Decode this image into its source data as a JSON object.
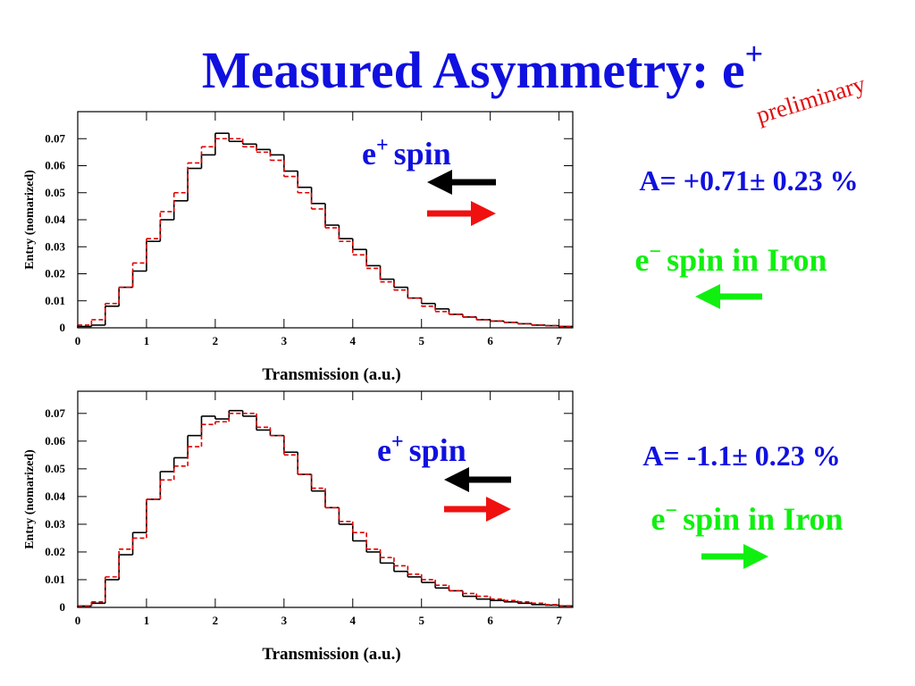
{
  "header": {
    "title": "Measured Asymmetry: e",
    "title_sup": "+",
    "stamp": "preliminary"
  },
  "chart_data": [
    {
      "type": "histogram",
      "bins": [
        0,
        0.2,
        0.4,
        0.6,
        0.8,
        1.0,
        1.2,
        1.4,
        1.6,
        1.8,
        2.0,
        2.2,
        2.4,
        2.6,
        2.8,
        3.0,
        3.2,
        3.4,
        3.6,
        3.8,
        4.0,
        4.2,
        4.4,
        4.6,
        4.8,
        5.0,
        5.2,
        5.4,
        5.6,
        5.8,
        6.0,
        6.2,
        6.4,
        6.6,
        6.8,
        7.0,
        7.2
      ],
      "series": [
        {
          "color": "#000000",
          "values": [
            0.0005,
            0.001,
            0.008,
            0.015,
            0.021,
            0.032,
            0.04,
            0.047,
            0.059,
            0.064,
            0.072,
            0.069,
            0.068,
            0.066,
            0.064,
            0.058,
            0.052,
            0.046,
            0.038,
            0.033,
            0.029,
            0.023,
            0.018,
            0.015,
            0.011,
            0.009,
            0.007,
            0.005,
            0.004,
            0.003,
            0.0025,
            0.002,
            0.0015,
            0.001,
            0.0008,
            0.0005
          ]
        },
        {
          "color": "#e00000",
          "dashed": true,
          "values": [
            0.001,
            0.003,
            0.009,
            0.015,
            0.024,
            0.033,
            0.043,
            0.05,
            0.061,
            0.067,
            0.07,
            0.07,
            0.067,
            0.065,
            0.062,
            0.056,
            0.05,
            0.044,
            0.037,
            0.032,
            0.027,
            0.022,
            0.017,
            0.014,
            0.011,
            0.008,
            0.006,
            0.005,
            0.004,
            0.003,
            0.0025,
            0.002,
            0.0015,
            0.001,
            0.0008,
            0.0005
          ]
        }
      ],
      "xlim": [
        0,
        7.2
      ],
      "ylim": [
        0,
        0.08
      ],
      "xticks": [
        0,
        1,
        2,
        3,
        4,
        5,
        6,
        7
      ],
      "yticks": [
        0,
        0.01,
        0.02,
        0.03,
        0.04,
        0.05,
        0.06,
        0.07
      ],
      "x_label": "Transmission (a.u.)",
      "y_label": "Entry (nomarized)",
      "annotations": {
        "spin_base": "e",
        "spin_sup": "+",
        "spin_word": "spin",
        "asymmetry": "A= +0.71± 0.23 %",
        "iron_base": "e",
        "iron_sup": "−",
        "iron_word": "spin in Iron"
      }
    },
    {
      "type": "histogram",
      "bins": [
        0,
        0.2,
        0.4,
        0.6,
        0.8,
        1.0,
        1.2,
        1.4,
        1.6,
        1.8,
        2.0,
        2.2,
        2.4,
        2.6,
        2.8,
        3.0,
        3.2,
        3.4,
        3.6,
        3.8,
        4.0,
        4.2,
        4.4,
        4.6,
        4.8,
        5.0,
        5.2,
        5.4,
        5.6,
        5.8,
        6.0,
        6.2,
        6.4,
        6.6,
        6.8,
        7.0,
        7.2
      ],
      "series": [
        {
          "color": "#000000",
          "values": [
            0.0005,
            0.0015,
            0.01,
            0.019,
            0.027,
            0.039,
            0.049,
            0.054,
            0.062,
            0.069,
            0.068,
            0.071,
            0.069,
            0.064,
            0.062,
            0.056,
            0.048,
            0.042,
            0.036,
            0.03,
            0.024,
            0.02,
            0.016,
            0.013,
            0.011,
            0.009,
            0.007,
            0.006,
            0.004,
            0.003,
            0.0025,
            0.002,
            0.0015,
            0.001,
            0.0008,
            0.0005
          ]
        },
        {
          "color": "#e00000",
          "dashed": true,
          "values": [
            0.0005,
            0.002,
            0.011,
            0.021,
            0.025,
            0.039,
            0.046,
            0.051,
            0.058,
            0.066,
            0.067,
            0.07,
            0.07,
            0.065,
            0.062,
            0.055,
            0.048,
            0.043,
            0.036,
            0.031,
            0.027,
            0.021,
            0.018,
            0.015,
            0.012,
            0.01,
            0.008,
            0.006,
            0.005,
            0.004,
            0.003,
            0.0025,
            0.002,
            0.0015,
            0.001,
            0.0006
          ]
        }
      ],
      "xlim": [
        0,
        7.2
      ],
      "ylim": [
        0,
        0.078
      ],
      "xticks": [
        0,
        1,
        2,
        3,
        4,
        5,
        6,
        7
      ],
      "yticks": [
        0,
        0.01,
        0.02,
        0.03,
        0.04,
        0.05,
        0.06,
        0.07
      ],
      "x_label": "Transmission (a.u.)",
      "y_label": "Entry (nomarized)",
      "annotations": {
        "spin_base": "e",
        "spin_sup": "+",
        "spin_word": "spin",
        "asymmetry": "A= -1.1± 0.23 %",
        "iron_base": "e",
        "iron_sup": "−",
        "iron_word": "spin in Iron"
      }
    }
  ]
}
